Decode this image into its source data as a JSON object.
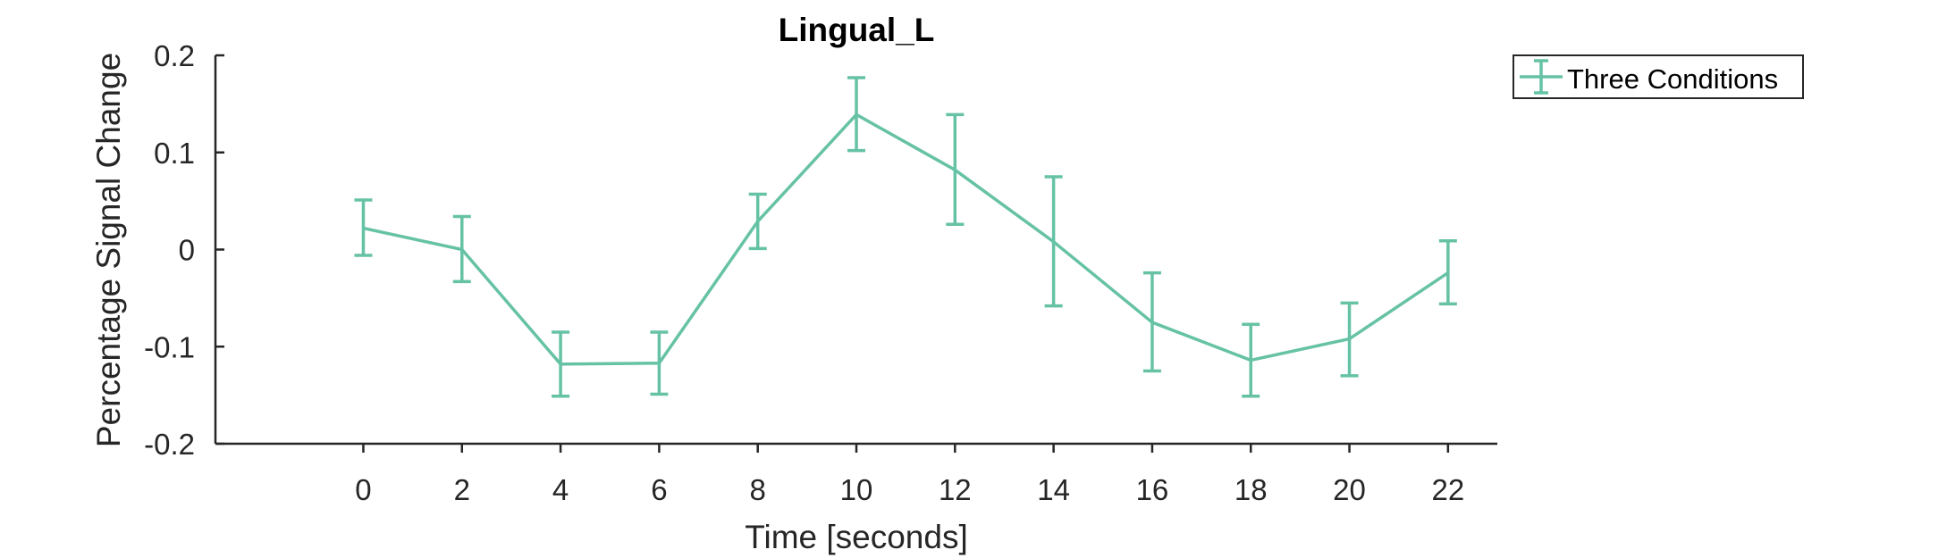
{
  "chart_data": {
    "type": "line",
    "title": "Lingual_L",
    "xlabel": "Time [seconds]",
    "ylabel": "Percentage Signal Change",
    "xlim": [
      -3,
      23
    ],
    "ylim": [
      -0.2,
      0.2
    ],
    "x_ticks": [
      0,
      2,
      4,
      6,
      8,
      10,
      12,
      14,
      16,
      18,
      20,
      22
    ],
    "x_tick_labels": [
      "0",
      "2",
      "4",
      "6",
      "8",
      "10",
      "12",
      "14",
      "16",
      "18",
      "20",
      "22"
    ],
    "y_ticks": [
      -0.2,
      -0.1,
      0,
      0.1,
      0.2
    ],
    "y_tick_labels": [
      "-0.2",
      "-0.1",
      "0",
      "0.1",
      "0.2"
    ],
    "grid": false,
    "legend_position": "outside-top-right",
    "series": [
      {
        "name": "Three Conditions",
        "color": "#66c2a5",
        "x": [
          0,
          2,
          4,
          6,
          8,
          10,
          12,
          14,
          16,
          18,
          20,
          22
        ],
        "y": [
          0.022,
          0.0,
          -0.118,
          -0.117,
          0.029,
          0.139,
          0.082,
          0.008,
          -0.075,
          -0.114,
          -0.092,
          -0.024
        ],
        "err_lower": [
          -0.006,
          -0.033,
          -0.151,
          -0.149,
          0.001,
          0.102,
          0.026,
          -0.058,
          -0.125,
          -0.151,
          -0.13,
          -0.056
        ],
        "err_upper": [
          0.051,
          0.034,
          -0.085,
          -0.085,
          0.057,
          0.177,
          0.139,
          0.075,
          -0.024,
          -0.077,
          -0.055,
          0.009
        ]
      }
    ]
  }
}
